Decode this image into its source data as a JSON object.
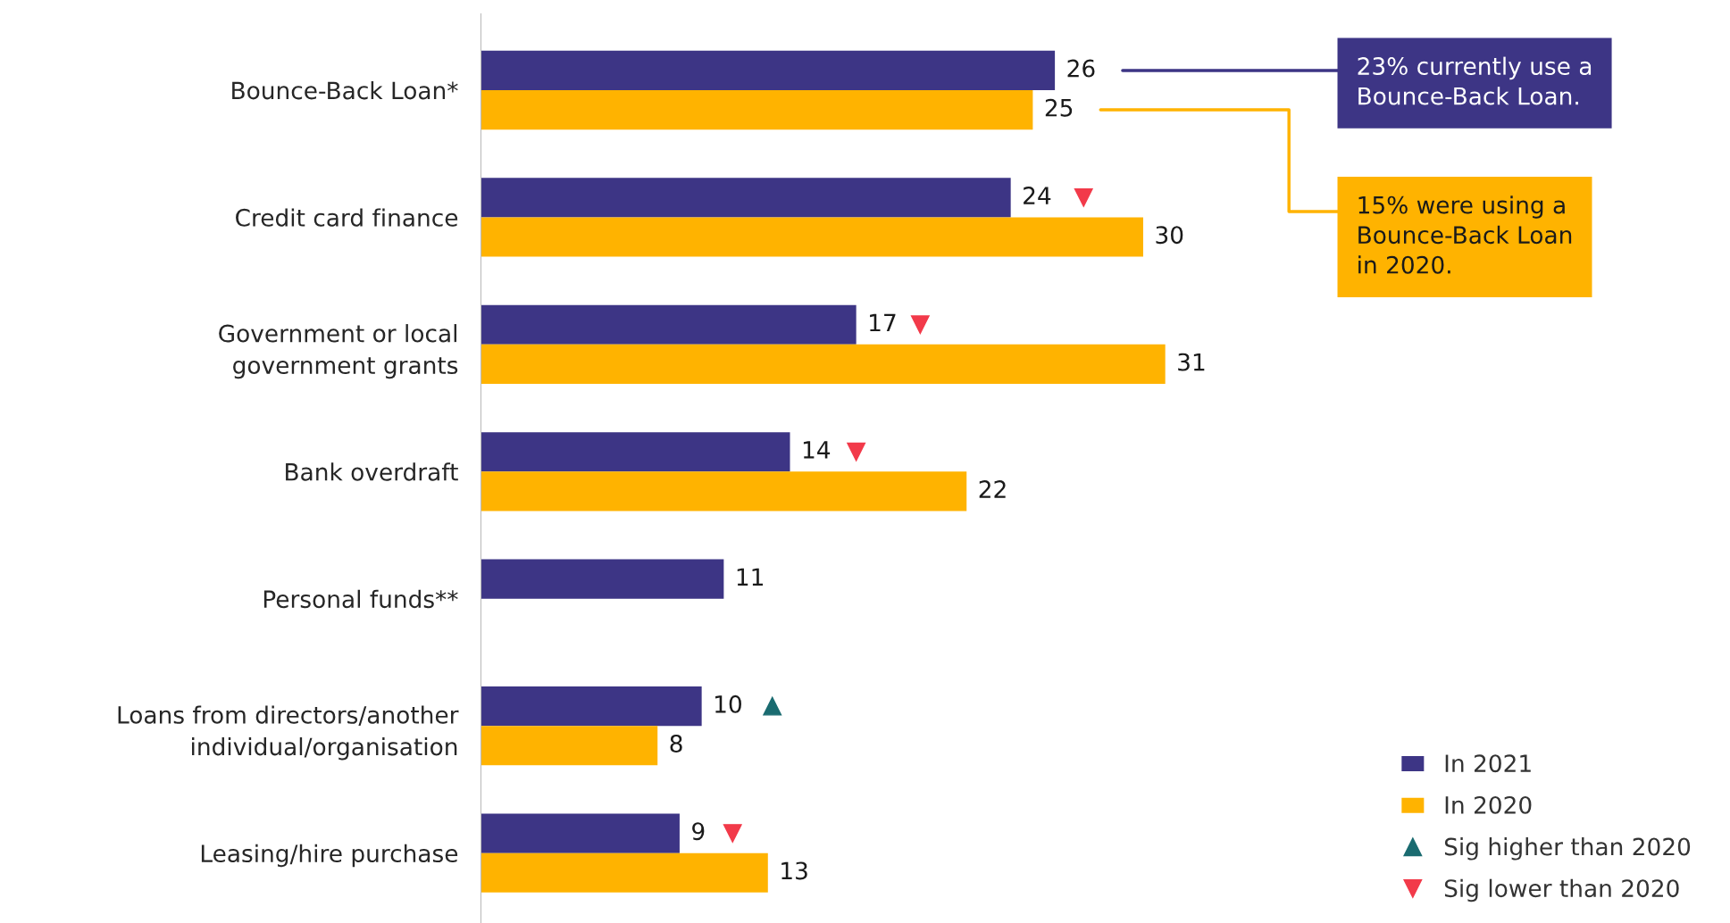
{
  "chart_data": {
    "type": "bar",
    "orientation": "horizontal",
    "categories": [
      "Bounce-Back Loan*",
      "Credit card finance",
      "Government or local\ngovernment grants",
      "Bank overdraft",
      "Personal funds**",
      "Loans from directors/another\nindividual/organisation",
      "Leasing/hire purchase"
    ],
    "series": [
      {
        "name": "In 2021",
        "color": "#3d3585",
        "values": [
          26,
          24,
          17,
          14,
          11,
          10,
          9
        ],
        "value_labels": [
          "26",
          "24",
          "17",
          "14",
          "11",
          "10",
          "9"
        ]
      },
      {
        "name": "In 2020",
        "color": "#ffb300",
        "values": [
          25,
          30,
          31,
          22,
          null,
          8,
          13
        ],
        "value_labels": [
          "25",
          "30",
          "31",
          "22",
          null,
          "8",
          "13"
        ]
      },
      {
        "name": "Sig higher than 2020",
        "type": "scatter",
        "marker": "triangle",
        "color": "#1a6b70",
        "values": [
          null,
          null,
          null,
          null,
          null,
          13.2,
          null
        ]
      },
      {
        "name": "Sig lower than 2020",
        "type": "scatter",
        "marker": "triangle_down",
        "color": "#f23a4a",
        "values": [
          null,
          27.3,
          19.9,
          17.0,
          null,
          null,
          11.4
        ]
      }
    ],
    "tick_labels": "y",
    "legend": "bottom right",
    "annotations": [
      "23% currently use a\nBounce-Back Loan.",
      "15% were using a\nBounce-Back Loan\nin 2020."
    ]
  }
}
